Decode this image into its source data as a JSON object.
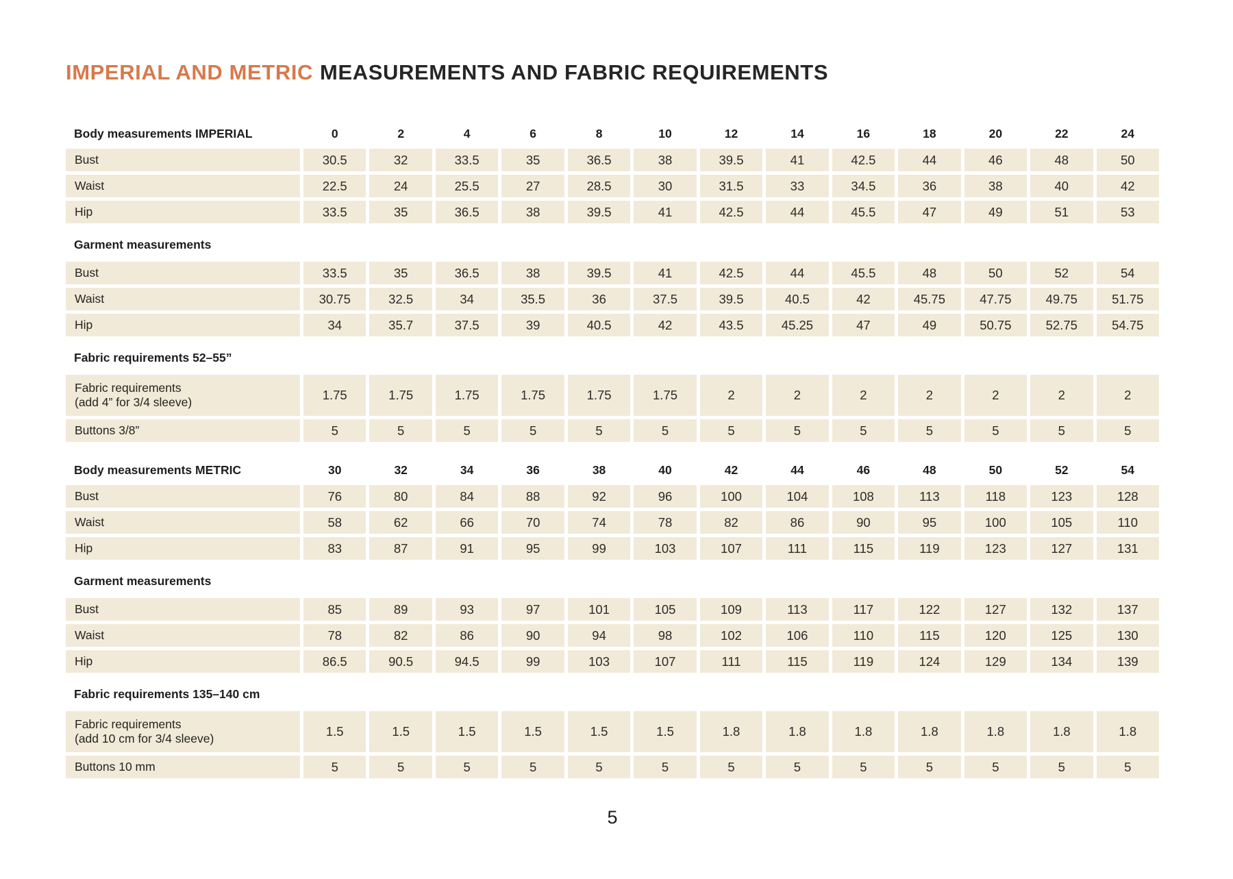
{
  "title": {
    "accent": "IMPERIAL AND METRIC",
    "main": "MEASUREMENTS AND FABRIC REQUIREMENTS"
  },
  "page": {
    "number": "5"
  },
  "colors": {
    "accent_orange": "#d8794b",
    "cell_beige": "#f1ead9",
    "text_dark": "#2f2b27"
  },
  "table": {
    "rows": [
      {
        "type": "size-header",
        "label": "Body measurements IMPERIAL",
        "values": [
          "0",
          "2",
          "4",
          "6",
          "8",
          "10",
          "12",
          "14",
          "16",
          "18",
          "20",
          "22",
          "24"
        ]
      },
      {
        "type": "data",
        "label": "Bust",
        "values": [
          "30.5",
          "32",
          "33.5",
          "35",
          "36.5",
          "38",
          "39.5",
          "41",
          "42.5",
          "44",
          "46",
          "48",
          "50"
        ]
      },
      {
        "type": "data",
        "label": "Waist",
        "values": [
          "22.5",
          "24",
          "25.5",
          "27",
          "28.5",
          "30",
          "31.5",
          "33",
          "34.5",
          "36",
          "38",
          "40",
          "42"
        ]
      },
      {
        "type": "data",
        "label": "Hip",
        "values": [
          "33.5",
          "35",
          "36.5",
          "38",
          "39.5",
          "41",
          "42.5",
          "44",
          "45.5",
          "47",
          "49",
          "51",
          "53"
        ]
      },
      {
        "type": "section",
        "label": "Garment measurements"
      },
      {
        "type": "data",
        "label": "Bust",
        "values": [
          "33.5",
          "35",
          "36.5",
          "38",
          "39.5",
          "41",
          "42.5",
          "44",
          "45.5",
          "48",
          "50",
          "52",
          "54"
        ]
      },
      {
        "type": "data",
        "label": "Waist",
        "values": [
          "30.75",
          "32.5",
          "34",
          "35.5",
          "36",
          "37.5",
          "39.5",
          "40.5",
          "42",
          "45.75",
          "47.75",
          "49.75",
          "51.75"
        ]
      },
      {
        "type": "data",
        "label": "Hip",
        "values": [
          "34",
          "35.7",
          "37.5",
          "39",
          "40.5",
          "42",
          "43.5",
          "45.25",
          "47",
          "49",
          "50.75",
          "52.75",
          "54.75"
        ]
      },
      {
        "type": "section",
        "label": "Fabric requirements 52–55”"
      },
      {
        "type": "data",
        "tall": true,
        "label": "Fabric requirements",
        "sublabel": "(add 4” for 3/4 sleeve)",
        "values": [
          "1.75",
          "1.75",
          "1.75",
          "1.75",
          "1.75",
          "1.75",
          "2",
          "2",
          "2",
          "2",
          "2",
          "2",
          "2"
        ]
      },
      {
        "type": "data",
        "label": "Buttons 3/8”",
        "values": [
          "5",
          "5",
          "5",
          "5",
          "5",
          "5",
          "5",
          "5",
          "5",
          "5",
          "5",
          "5",
          "5"
        ]
      },
      {
        "type": "spacer"
      },
      {
        "type": "size-header",
        "label": "Body measurements METRIC",
        "values": [
          "30",
          "32",
          "34",
          "36",
          "38",
          "40",
          "42",
          "44",
          "46",
          "48",
          "50",
          "52",
          "54"
        ]
      },
      {
        "type": "data",
        "label": "Bust",
        "values": [
          "76",
          "80",
          "84",
          "88",
          "92",
          "96",
          "100",
          "104",
          "108",
          "113",
          "118",
          "123",
          "128"
        ]
      },
      {
        "type": "data",
        "label": "Waist",
        "values": [
          "58",
          "62",
          "66",
          "70",
          "74",
          "78",
          "82",
          "86",
          "90",
          "95",
          "100",
          "105",
          "110"
        ]
      },
      {
        "type": "data",
        "label": "Hip",
        "values": [
          "83",
          "87",
          "91",
          "95",
          "99",
          "103",
          "107",
          "111",
          "115",
          "119",
          "123",
          "127",
          "131"
        ]
      },
      {
        "type": "section",
        "label": "Garment measurements"
      },
      {
        "type": "data",
        "label": "Bust",
        "values": [
          "85",
          "89",
          "93",
          "97",
          "101",
          "105",
          "109",
          "113",
          "117",
          "122",
          "127",
          "132",
          "137"
        ]
      },
      {
        "type": "data",
        "label": "Waist",
        "values": [
          "78",
          "82",
          "86",
          "90",
          "94",
          "98",
          "102",
          "106",
          "110",
          "115",
          "120",
          "125",
          "130"
        ]
      },
      {
        "type": "data",
        "label": "Hip",
        "values": [
          "86.5",
          "90.5",
          "94.5",
          "99",
          "103",
          "107",
          "111",
          "115",
          "119",
          "124",
          "129",
          "134",
          "139"
        ]
      },
      {
        "type": "section",
        "label": "Fabric requirements 135–140 cm"
      },
      {
        "type": "data",
        "tall": true,
        "label": "Fabric requirements",
        "sublabel": "(add 10 cm for 3/4 sleeve)",
        "values": [
          "1.5",
          "1.5",
          "1.5",
          "1.5",
          "1.5",
          "1.5",
          "1.8",
          "1.8",
          "1.8",
          "1.8",
          "1.8",
          "1.8",
          "1.8"
        ]
      },
      {
        "type": "data",
        "label": "Buttons 10 mm",
        "values": [
          "5",
          "5",
          "5",
          "5",
          "5",
          "5",
          "5",
          "5",
          "5",
          "5",
          "5",
          "5",
          "5"
        ]
      }
    ]
  }
}
